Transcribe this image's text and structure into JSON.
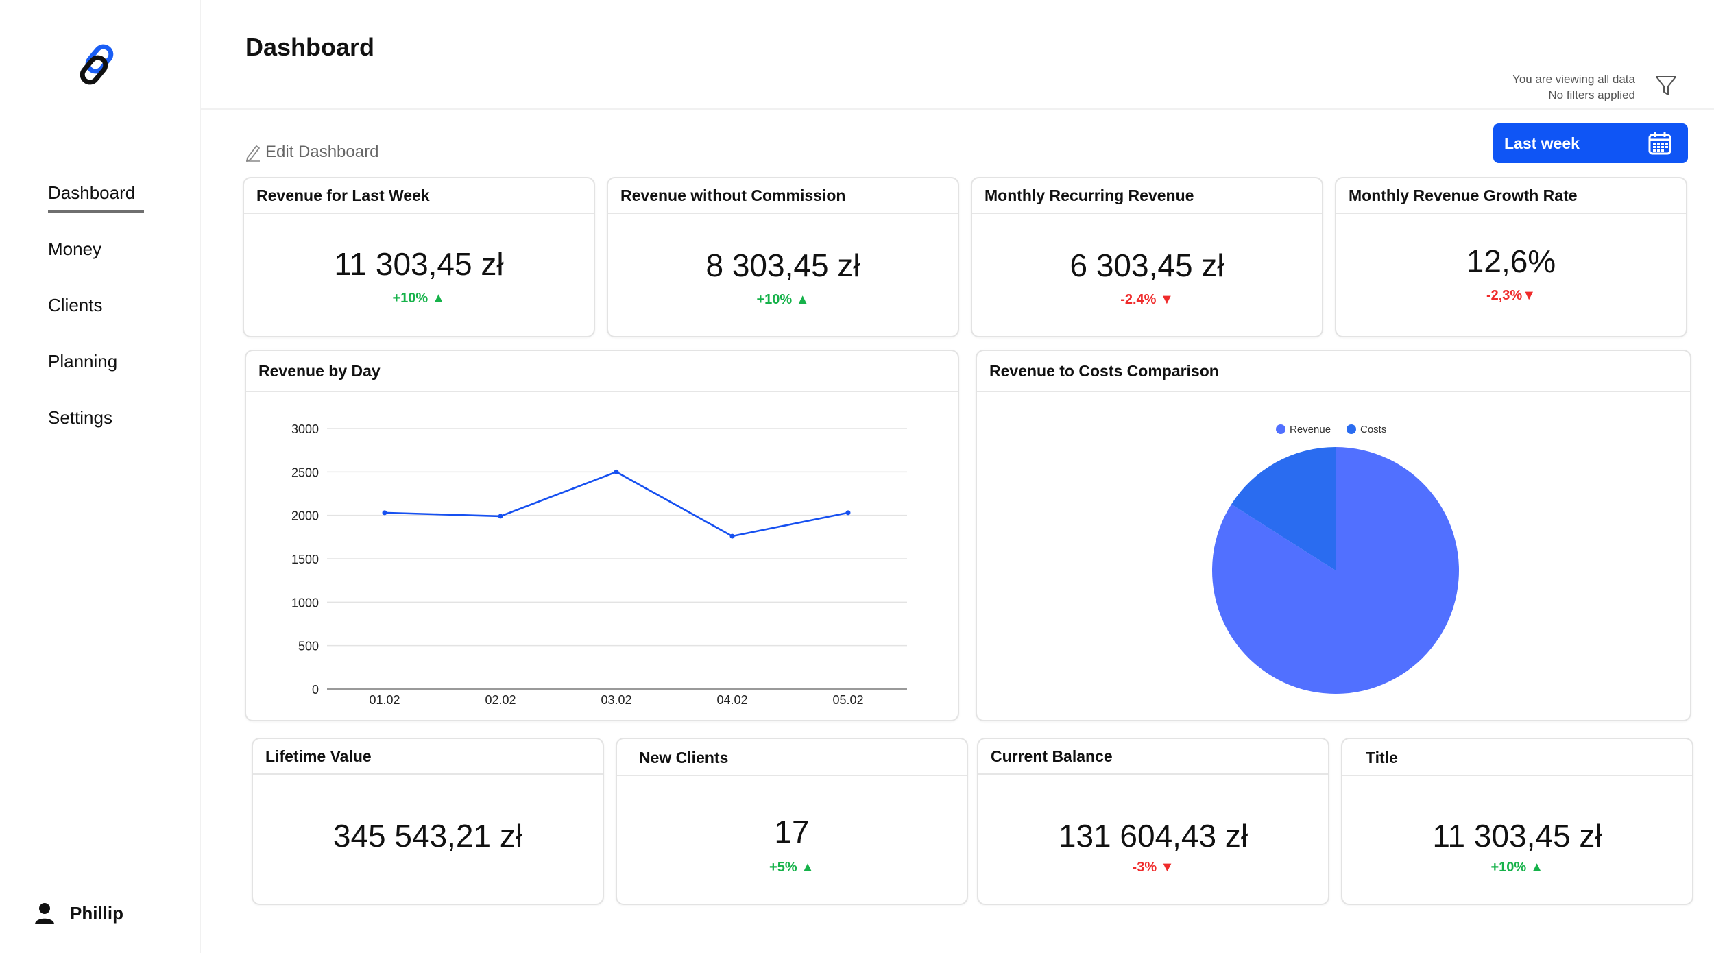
{
  "sidebar": {
    "nav": [
      "Dashboard",
      "Money",
      "Clients",
      "Planning",
      "Settings"
    ],
    "active": "Dashboard",
    "user": "Phillip"
  },
  "header": {
    "title": "Dashboard",
    "filter_line1": "You are viewing all data",
    "filter_line2": "No filters applied"
  },
  "toolbar": {
    "edit_label": "Edit Dashboard",
    "date_range": "Last week"
  },
  "colors": {
    "accent": "#0f55f5",
    "up": "#16b24a",
    "down": "#ef2b2b",
    "revenue": "#5170ff",
    "costs": "#2a6cf0"
  },
  "kpi_top": [
    {
      "title": "Revenue for Last Week",
      "value": "11 303,45 zł",
      "change": "+10%",
      "direction": "up"
    },
    {
      "title": "Revenue without Commission",
      "value": "8 303,45 zł",
      "change": "+10%",
      "direction": "up"
    },
    {
      "title": "Monthly Recurring Revenue",
      "value": "6 303,45 zł",
      "change": "-2.4%",
      "direction": "down"
    },
    {
      "title": "Monthly Revenue Growth Rate",
      "value": "12,6%",
      "change": "-2,3%",
      "direction": "down"
    }
  ],
  "kpi_bottom": [
    {
      "title": "Lifetime Value",
      "value": "345 543,21 zł",
      "change": "",
      "direction": ""
    },
    {
      "title": "New Clients",
      "value": "17",
      "change": "+5%",
      "direction": "up"
    },
    {
      "title": "Current Balance",
      "value": "131 604,43 zł",
      "change": "-3%",
      "direction": "down"
    },
    {
      "title": "Title",
      "value": "11 303,45 zł",
      "change": "+10%",
      "direction": "up"
    }
  ],
  "line_chart": {
    "title": "Revenue by Day"
  },
  "pie_chart": {
    "title": "Revenue to Costs Comparison"
  },
  "chart_data": [
    {
      "type": "line",
      "title": "Revenue by Day",
      "x": [
        "01.02",
        "02.02",
        "03.02",
        "04.02",
        "05.02"
      ],
      "series": [
        {
          "values": [
            2030,
            1990,
            2500,
            1760,
            2030
          ]
        }
      ],
      "yticks": [
        0,
        500,
        1000,
        1500,
        2000,
        2500,
        3000
      ],
      "ylim": [
        0,
        3000
      ],
      "grid": true
    },
    {
      "type": "pie",
      "title": "Revenue to Costs Comparison",
      "labels": [
        "Revenue",
        "Costs"
      ],
      "values": [
        84,
        16
      ],
      "legend": "top"
    }
  ]
}
